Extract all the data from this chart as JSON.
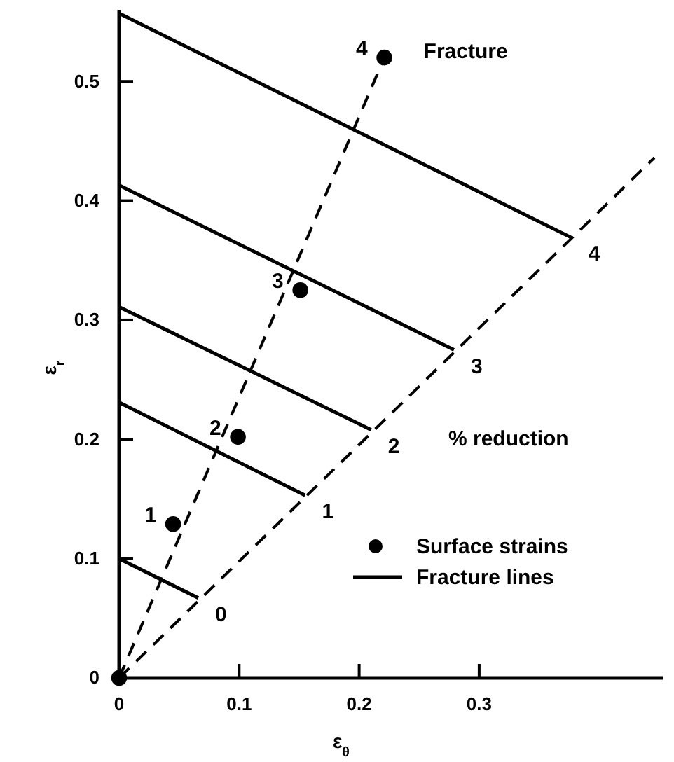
{
  "chart_data": {
    "type": "line",
    "xlabel": "ε$_{θ}$",
    "ylabel": "ε$_{r}$",
    "xlim": [
      0,
      0.453
    ],
    "ylim": [
      0,
      0.56
    ],
    "xticks": [
      0,
      0.1,
      0.2,
      0.3
    ],
    "yticks": [
      0,
      0.1,
      0.2,
      0.3,
      0.4,
      0.5
    ],
    "grid": false,
    "legend": "bottom right",
    "marker": "none",
    "line_style": "solid",
    "annotations": [
      "% reduction",
      {
        "text": "1",
        "x": 0.045,
        "y": 0.129
      },
      {
        "text": "2",
        "x": 0.099,
        "y": 0.202
      },
      {
        "text": "3",
        "x": 0.151,
        "y": 0.325
      },
      {
        "text": "4",
        "x": 0.221,
        "y": 0.52
      },
      {
        "text": "Fracture",
        "x": 0.221,
        "y": 0.52
      },
      {
        "text": "0",
        "x": 0.066,
        "y": 0.067
      },
      {
        "text": "1",
        "x": 0.155,
        "y": 0.153
      },
      {
        "text": "2",
        "x": 0.21,
        "y": 0.208
      },
      {
        "text": "3",
        "x": 0.279,
        "y": 0.275
      },
      {
        "text": "4",
        "x": 0.377,
        "y": 0.369
      }
    ],
    "series": [
      {
        "type": "scatter",
        "name": "Surface strains",
        "color": "#000000",
        "marker": "circle",
        "x": [
          0,
          0.045,
          0.099,
          0.151,
          0.221
        ],
        "values": [
          0,
          0.129,
          0.202,
          0.325,
          0.52
        ]
      },
      {
        "name": "Fracture lines",
        "color": "#000000",
        "x": [
          0,
          0.066
        ],
        "values": [
          0.1,
          0.067
        ]
      },
      {
        "color": "#000000",
        "x": [
          0,
          0.155
        ],
        "values": [
          0.231,
          0.153
        ]
      },
      {
        "color": "#000000",
        "x": [
          0,
          0.21
        ],
        "values": [
          0.311,
          0.208
        ]
      },
      {
        "color": "#000000",
        "x": [
          0,
          0.279
        ],
        "values": [
          0.413,
          0.275
        ]
      },
      {
        "color": "#000000",
        "x": [
          0,
          0.377
        ],
        "values": [
          0.557,
          0.369
        ]
      },
      {
        "color": "#000000",
        "line_style": "dashed",
        "x": [
          0,
          0.221
        ],
        "values": [
          0,
          0.52
        ]
      },
      {
        "color": "#000000",
        "line_style": "dashed",
        "x": [
          0,
          0.446
        ],
        "values": [
          0,
          0.436
        ]
      }
    ]
  }
}
